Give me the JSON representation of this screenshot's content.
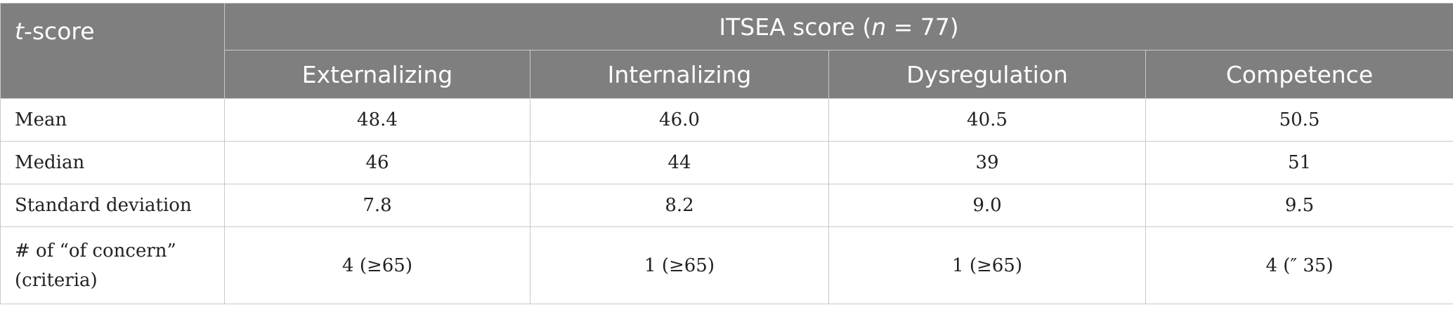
{
  "table": {
    "corner_var": "t",
    "corner_rest": "-score",
    "group_prefix": "ITSEA score (",
    "group_n": "n",
    "group_suffix": " = 77)",
    "columns": [
      "Externalizing",
      "Internalizing",
      "Dysregulation",
      "Competence"
    ],
    "rows": [
      {
        "label_line1": "Mean",
        "label_line2": "",
        "values": [
          "48.4",
          "46.0",
          "40.5",
          "50.5"
        ]
      },
      {
        "label_line1": "Median",
        "label_line2": "",
        "values": [
          "46",
          "44",
          "39",
          "51"
        ]
      },
      {
        "label_line1": "Standard deviation",
        "label_line2": "",
        "values": [
          "7.8",
          "8.2",
          "9.0",
          "9.5"
        ]
      },
      {
        "label_line1": "# of “of concern”",
        "label_line2": "(criteria)",
        "values": [
          "4 (≥65)",
          "1 (≥65)",
          "1 (≥65)",
          "4 (″ 35)"
        ]
      }
    ]
  }
}
